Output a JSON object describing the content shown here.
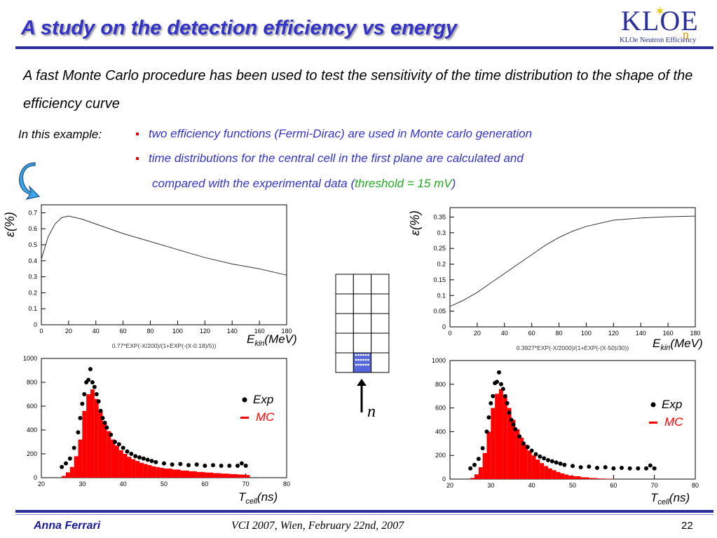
{
  "slide": {
    "title": "A study on the detection efficiency vs energy",
    "intro": "A fast Monte Carlo procedure has been used to test the sensitivity of the time distribution to the shape of the efficiency curve",
    "example_label": "In this example",
    "example_colon": ":",
    "bullets": [
      "two efficiency functions (Fermi-Dirac) are used in Monte carlo generation",
      "time distributions for the central cell in the first plane are calculated and"
    ],
    "bullet2_cont_prefix": "compared with the experimental data (",
    "bullet2_cont_green": "threshold = 15 mV",
    "bullet2_cont_suffix": ")",
    "neutron_label": "n",
    "logo": {
      "main": "KLOE",
      "n": "n",
      "sub": "KLOe Neutron Efficiency"
    },
    "footer": {
      "author": "Anna Ferrari",
      "conference": "VCI 2007, Wien, February 22nd, 2007",
      "page": "22"
    },
    "colors": {
      "title": "#3333cc",
      "bar": "#2a2f99",
      "mc": "#ff0000",
      "green": "#22aa22"
    }
  },
  "chart_data": [
    {
      "type": "line",
      "id": "eff-left",
      "ylabel": "ε(%)",
      "xlabel_main": "E",
      "xlabel_sub": "kin",
      "xlabel_unit": "(MeV)",
      "formula": "0.77*EXP(-X/200)/(1+EXP(-(X-0.18)/5))",
      "xlim": [
        0,
        180
      ],
      "ylim": [
        0,
        0.75
      ],
      "xticks": [
        0,
        20,
        40,
        60,
        80,
        100,
        120,
        140,
        160,
        180
      ],
      "yticks": [
        "0",
        "0.1",
        "0.2",
        "0.3",
        "0.4",
        "0.5",
        "0.6",
        "0.7"
      ],
      "x": [
        0,
        5,
        10,
        15,
        20,
        30,
        40,
        60,
        80,
        100,
        120,
        140,
        160,
        180
      ],
      "y": [
        0.41,
        0.55,
        0.63,
        0.67,
        0.68,
        0.66,
        0.63,
        0.57,
        0.52,
        0.47,
        0.42,
        0.38,
        0.35,
        0.31
      ]
    },
    {
      "type": "line",
      "id": "eff-right",
      "ylabel": "ε(%)",
      "xlabel_main": "E",
      "xlabel_sub": "kin",
      "xlabel_unit": "(MeV)",
      "formula": "0.3927*EXP(-X/2000)/(1+EXP(-(X-50)/30))",
      "xlim": [
        0,
        180
      ],
      "ylim": [
        0,
        0.38
      ],
      "xticks": [
        0,
        20,
        40,
        60,
        80,
        100,
        120,
        140,
        160,
        180
      ],
      "yticks": [
        "0",
        "0.05",
        "0.1",
        "0.15",
        "0.2",
        "0.25",
        "0.3",
        "0.35"
      ],
      "x": [
        0,
        10,
        20,
        30,
        40,
        50,
        60,
        70,
        80,
        90,
        100,
        120,
        140,
        160,
        180
      ],
      "y": [
        0.065,
        0.085,
        0.11,
        0.14,
        0.17,
        0.2,
        0.23,
        0.26,
        0.285,
        0.305,
        0.32,
        0.34,
        0.347,
        0.351,
        0.353
      ]
    },
    {
      "type": "bar",
      "id": "time-left",
      "xlabel_main": "T",
      "xlabel_sub": "cell",
      "xlabel_unit": "(ns)",
      "legend": [
        {
          "name": "Exp",
          "symbol": "●"
        },
        {
          "name": "MC",
          "symbol": "–"
        }
      ],
      "xlim": [
        20,
        80
      ],
      "ylim": [
        0,
        1000
      ],
      "xticks": [
        20,
        30,
        40,
        50,
        60,
        70,
        80
      ],
      "yticks": [
        0,
        200,
        400,
        600,
        800,
        1000
      ],
      "mc_x": [
        25,
        26,
        27,
        28,
        29,
        30,
        31,
        32,
        33,
        34,
        35,
        36,
        37,
        38,
        39,
        40,
        41,
        42,
        43,
        44,
        45,
        46,
        47,
        48,
        49,
        50,
        52,
        54,
        56,
        58,
        60,
        62,
        64,
        66,
        68,
        70
      ],
      "mc_y": [
        15,
        45,
        90,
        180,
        320,
        560,
        700,
        740,
        660,
        560,
        470,
        390,
        320,
        270,
        230,
        200,
        175,
        155,
        140,
        125,
        115,
        105,
        95,
        88,
        82,
        76,
        68,
        60,
        54,
        48,
        43,
        38,
        34,
        30,
        26,
        22
      ],
      "exp_x": [
        25,
        26,
        27,
        28,
        29,
        29.5,
        30,
        30.5,
        31,
        31.5,
        32,
        32.5,
        33,
        33.5,
        34,
        34.5,
        35,
        35.5,
        36,
        37,
        38,
        39,
        40,
        41,
        42,
        43,
        44,
        45,
        46,
        47,
        48,
        50,
        52,
        54,
        56,
        58,
        60,
        62,
        64,
        66,
        68,
        69,
        70
      ],
      "exp_y": [
        90,
        120,
        160,
        250,
        380,
        500,
        620,
        700,
        800,
        820,
        910,
        800,
        760,
        700,
        640,
        560,
        500,
        460,
        420,
        360,
        300,
        280,
        250,
        220,
        200,
        180,
        170,
        160,
        150,
        140,
        130,
        120,
        110,
        115,
        105,
        110,
        100,
        105,
        100,
        100,
        100,
        120,
        100
      ]
    },
    {
      "type": "bar",
      "id": "time-right",
      "xlabel_main": "T",
      "xlabel_sub": "cell",
      "xlabel_unit": "(ns)",
      "legend": [
        {
          "name": "Exp",
          "symbol": "●"
        },
        {
          "name": "MC",
          "symbol": "–"
        }
      ],
      "xlim": [
        20,
        80
      ],
      "ylim": [
        0,
        1000
      ],
      "xticks": [
        20,
        30,
        40,
        50,
        60,
        70,
        80
      ],
      "yticks": [
        0,
        200,
        400,
        600,
        800,
        1000
      ],
      "mc_x": [
        25,
        26,
        27,
        28,
        29,
        30,
        31,
        32,
        33,
        34,
        35,
        36,
        37,
        38,
        39,
        40,
        41,
        42,
        43,
        44,
        45,
        46,
        47,
        48,
        49,
        50,
        52,
        54,
        56,
        58,
        60
      ],
      "mc_y": [
        10,
        40,
        100,
        220,
        400,
        600,
        720,
        760,
        700,
        600,
        500,
        420,
        350,
        290,
        240,
        200,
        165,
        135,
        110,
        90,
        75,
        60,
        48,
        38,
        30,
        24,
        15,
        9,
        5,
        3,
        1
      ],
      "exp_x": [
        25,
        26,
        27,
        28,
        29,
        29.5,
        30,
        30.5,
        31,
        31.5,
        32,
        32.5,
        33,
        33.5,
        34,
        34.5,
        35,
        35.5,
        36,
        37,
        38,
        39,
        40,
        41,
        42,
        43,
        44,
        45,
        46,
        47,
        48,
        50,
        52,
        54,
        56,
        58,
        60,
        62,
        64,
        66,
        68,
        69,
        70
      ],
      "exp_y": [
        90,
        120,
        170,
        260,
        400,
        520,
        640,
        700,
        810,
        820,
        900,
        800,
        760,
        700,
        640,
        560,
        500,
        460,
        420,
        360,
        300,
        270,
        240,
        210,
        190,
        175,
        160,
        150,
        140,
        130,
        120,
        110,
        100,
        105,
        95,
        100,
        90,
        95,
        90,
        90,
        90,
        115,
        90
      ]
    }
  ]
}
